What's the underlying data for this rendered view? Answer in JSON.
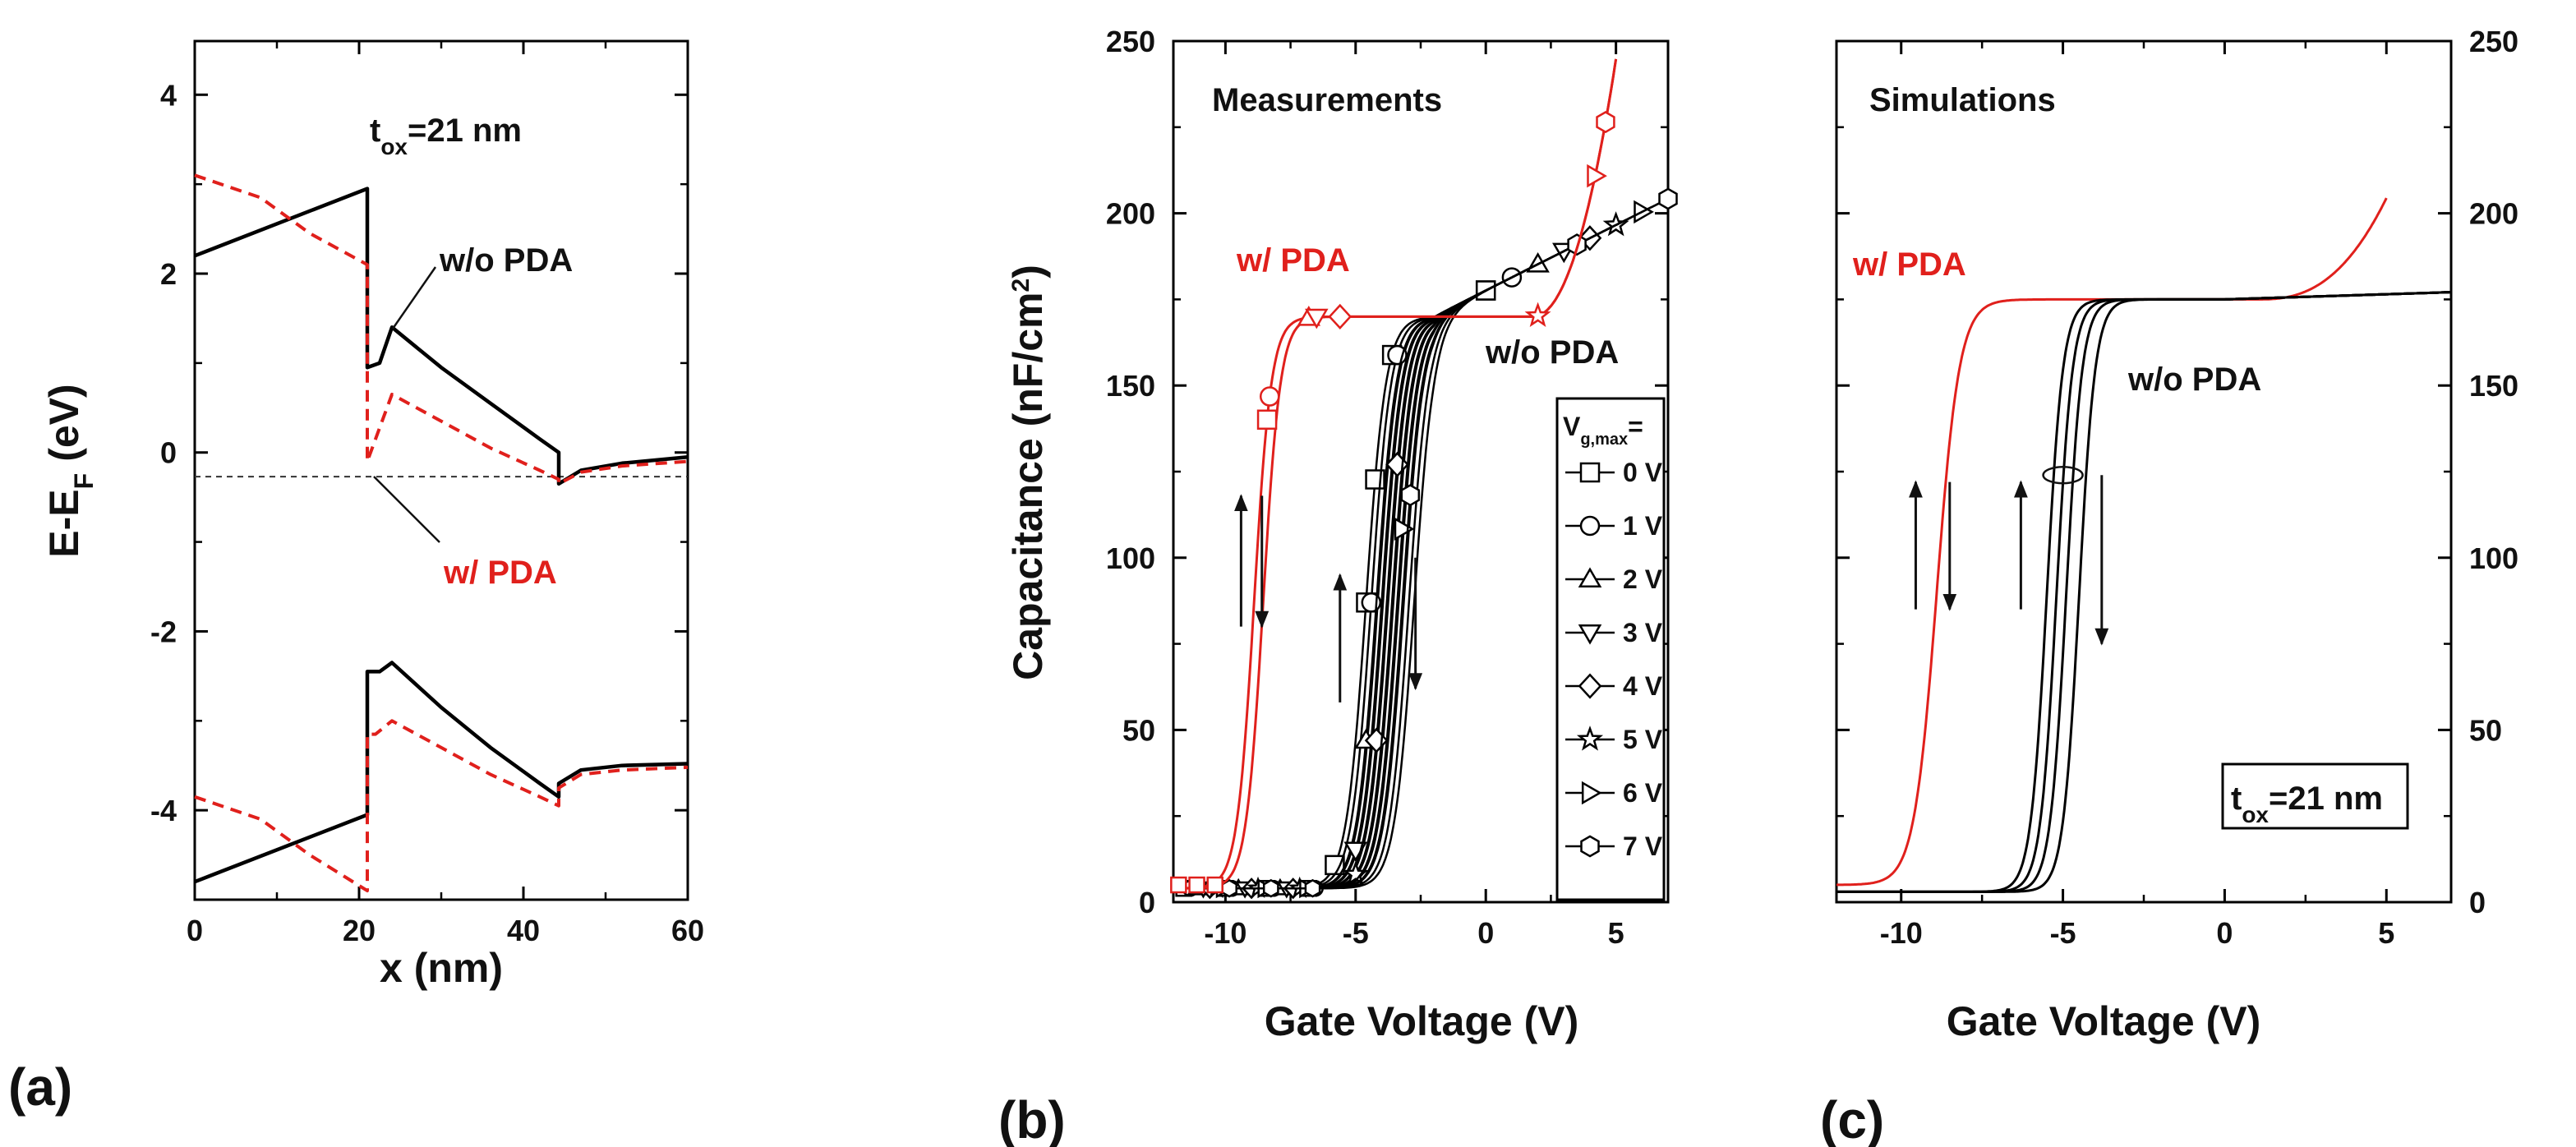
{
  "chart_data": [
    {
      "id": "a",
      "panel_label": "(a)",
      "type": "line",
      "xlabel": "x (nm)",
      "ylabel_main": "E-E",
      "ylabel_sub": "F",
      "ylabel_unit": "(eV)",
      "xlim": [
        0,
        60
      ],
      "ylim": [
        -5,
        4.6
      ],
      "xticks": [
        0,
        20,
        40,
        60
      ],
      "yticks": [
        -4,
        -2,
        0,
        2,
        4
      ],
      "tick_labels_x": [
        "0",
        "20",
        "40",
        "60"
      ],
      "tick_labels_y": [
        "-4",
        "-2",
        "0",
        "2",
        "4"
      ],
      "annotations": {
        "tox_main": "t",
        "tox_sub": "ox",
        "tox_rest": "=21 nm",
        "wo_pda": "w/o PDA",
        "w_pda": "w/ PDA"
      },
      "fermi_level": -0.27,
      "series": [
        {
          "name": "w/o PDA conduction band",
          "color": "#000000",
          "style": "solid",
          "x": [
            0,
            21,
            21,
            22.5,
            24,
            30,
            36,
            42,
            44.3,
            44.3,
            47,
            52,
            60
          ],
          "y": [
            2.2,
            2.95,
            0.95,
            1.0,
            1.4,
            0.95,
            0.55,
            0.15,
            0.0,
            -0.35,
            -0.2,
            -0.12,
            -0.05
          ]
        },
        {
          "name": "w/o PDA valence band",
          "color": "#000000",
          "style": "solid",
          "x": [
            0,
            21,
            21,
            22.5,
            24,
            30,
            36,
            42,
            44.3,
            44.3,
            47,
            52,
            60
          ],
          "y": [
            -4.8,
            -4.05,
            -2.45,
            -2.45,
            -2.35,
            -2.85,
            -3.3,
            -3.7,
            -3.85,
            -3.7,
            -3.55,
            -3.5,
            -3.48
          ]
        },
        {
          "name": "w/ PDA conduction band",
          "color": "#e0201c",
          "style": "dashed",
          "x": [
            0,
            8,
            14,
            21,
            21,
            22,
            24,
            30,
            36,
            42,
            44.3,
            44.3,
            47,
            52,
            60
          ],
          "y": [
            3.1,
            2.85,
            2.45,
            2.1,
            -0.1,
            0.15,
            0.65,
            0.35,
            0.05,
            -0.2,
            -0.3,
            -0.35,
            -0.22,
            -0.15,
            -0.1
          ]
        },
        {
          "name": "w/ PDA valence band",
          "color": "#e0201c",
          "style": "dashed",
          "x": [
            0,
            8,
            14,
            21,
            21,
            22,
            24,
            30,
            36,
            42,
            44.3,
            44.3,
            47,
            52,
            60
          ],
          "y": [
            -3.85,
            -4.1,
            -4.5,
            -4.9,
            -3.15,
            -3.15,
            -3.0,
            -3.3,
            -3.6,
            -3.85,
            -3.95,
            -3.75,
            -3.6,
            -3.55,
            -3.52
          ]
        }
      ]
    },
    {
      "id": "b",
      "panel_label": "(b)",
      "type": "line",
      "title": "Measurements",
      "xlabel": "Gate Voltage (V)",
      "ylabel": "Capacitance  (nF/cm",
      "ylabel_sup": "2",
      "ylabel_close": ")",
      "xlim": [
        -12,
        7
      ],
      "ylim": [
        0,
        250
      ],
      "xticks": [
        -10,
        -5,
        0,
        5
      ],
      "yticks": [
        0,
        50,
        100,
        150,
        200,
        250
      ],
      "tick_labels_x": [
        "-10",
        "-5",
        "0",
        "5"
      ],
      "tick_labels_y": [
        "0",
        "50",
        "100",
        "150",
        "200",
        "250"
      ],
      "annotations": {
        "w_pda": "w/ PDA",
        "wo_pda": "w/o PDA"
      },
      "legend": {
        "title_main": "V",
        "title_sub": "g,max",
        "title_rest": "=",
        "position": "lower-right",
        "entries": [
          {
            "label": "0 V",
            "marker": "square"
          },
          {
            "label": "1 V",
            "marker": "circle"
          },
          {
            "label": "2 V",
            "marker": "triangle-up"
          },
          {
            "label": "3 V",
            "marker": "triangle-down"
          },
          {
            "label": "4 V",
            "marker": "diamond"
          },
          {
            "label": "5 V",
            "marker": "star"
          },
          {
            "label": "6 V",
            "marker": "triangle-right"
          },
          {
            "label": "7 V",
            "marker": "hexagon"
          }
        ]
      },
      "series": [
        {
          "name": "w/o PDA 0 V",
          "color": "#000000",
          "marker": "square",
          "shift": -4.6,
          "vmax": 0,
          "markers_at": [
            -5.8,
            -4.6,
            -4.25,
            -3.6,
            0,
            0
          ]
        },
        {
          "name": "w/o PDA 1 V",
          "color": "#000000",
          "marker": "circle",
          "shift": -4.4,
          "vmax": 1,
          "markers_at": [
            -4.4,
            -3.4,
            1
          ]
        },
        {
          "name": "w/o PDA 2 V",
          "color": "#000000",
          "marker": "triangle-up",
          "shift": -4.2,
          "vmax": 2,
          "markers_at": [
            -4.6,
            2
          ]
        },
        {
          "name": "w/o PDA 3 V",
          "color": "#000000",
          "marker": "triangle-down",
          "shift": -4.0,
          "vmax": 3,
          "markers_at": [
            -5.0,
            3
          ]
        },
        {
          "name": "w/o PDA 4 V",
          "color": "#000000",
          "marker": "diamond",
          "shift": -3.8,
          "vmax": 4,
          "markers_at": [
            -3.4,
            -4.2,
            4
          ]
        },
        {
          "name": "w/o PDA 5 V",
          "color": "#000000",
          "marker": "star",
          "shift": -3.6,
          "vmax": 5,
          "markers_at": [
            -5.0,
            5
          ]
        },
        {
          "name": "w/o PDA 6 V",
          "color": "#000000",
          "marker": "triangle-right",
          "shift": -3.4,
          "vmax": 6,
          "markers_at": [
            -3.2,
            6
          ]
        },
        {
          "name": "w/o PDA 7 V",
          "color": "#000000",
          "marker": "hexagon",
          "shift": -3.2,
          "vmax": 7,
          "markers_at": [
            -2.9,
            3.5,
            7
          ]
        },
        {
          "name": "w/ PDA",
          "color": "#e0201c",
          "marker": "mixed",
          "shift": -8.9,
          "vmax": 5,
          "markers_at": [
            -8.4,
            -8.3,
            -6.8,
            -6.5,
            -5.6,
            2.0,
            4.2,
            4.6
          ]
        }
      ]
    },
    {
      "id": "c",
      "panel_label": "(c)",
      "type": "line",
      "title": "Simulations",
      "xlabel": "Gate Voltage (V)",
      "xlim": [
        -12,
        7
      ],
      "ylim": [
        0,
        250
      ],
      "xticks": [
        -10,
        -5,
        0,
        5
      ],
      "yticks": [
        0,
        50,
        100,
        150,
        200,
        250
      ],
      "tick_labels_x": [
        "-10",
        "-5",
        "0",
        "5"
      ],
      "tick_labels_y": [
        "0",
        "50",
        "100",
        "150",
        "200",
        "250"
      ],
      "annotations": {
        "w_pda": "w/ PDA",
        "wo_pda": "w/o PDA",
        "tox_main": "t",
        "tox_sub": "ox",
        "tox_rest": "=21 nm"
      },
      "series": [
        {
          "name": "w/ PDA",
          "color": "#e0201c",
          "center": -8.9,
          "width": 0.35,
          "vmax": 5
        },
        {
          "name": "w/o PDA 1",
          "color": "#000000",
          "center": -5.5,
          "width": 0.25
        },
        {
          "name": "w/o PDA 2",
          "color": "#000000",
          "center": -5.2,
          "width": 0.25
        },
        {
          "name": "w/o PDA 3",
          "color": "#000000",
          "center": -4.9,
          "width": 0.25
        },
        {
          "name": "w/o PDA 4",
          "color": "#000000",
          "center": -4.5,
          "width": 0.25
        }
      ]
    }
  ]
}
